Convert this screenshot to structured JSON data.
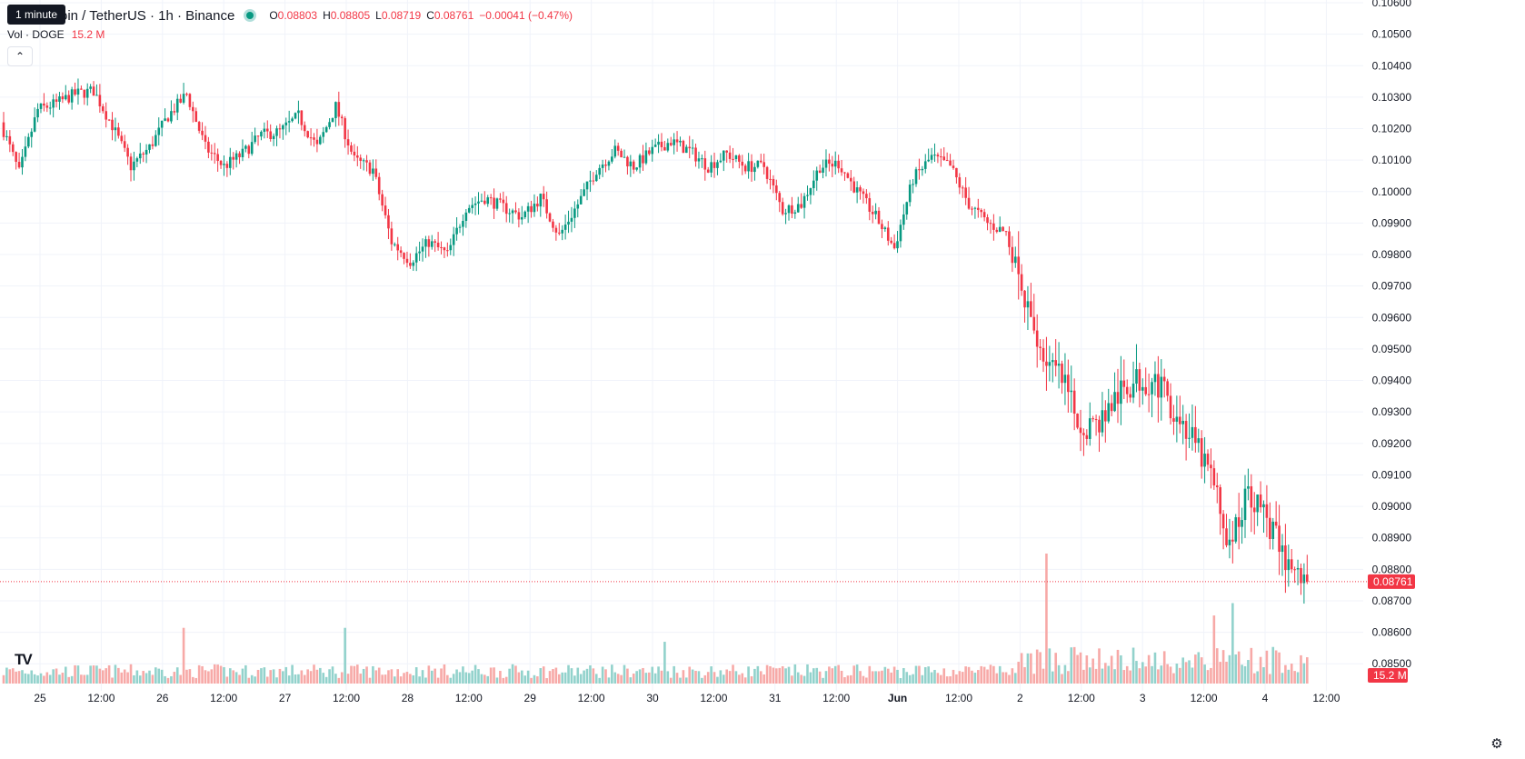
{
  "tooltip": "1 minute",
  "symbol": {
    "title": "oin / TetherUS · 1h · Binance",
    "ohlc": {
      "o_label": "O",
      "o": "0.08803",
      "h_label": "H",
      "h": "0.08805",
      "l_label": "L",
      "l": "0.08719",
      "c_label": "C",
      "c": "0.08761",
      "change": "−0.00041 (−0.47%)"
    }
  },
  "volume_legend": {
    "label": "Vol · DOGE",
    "value": "15.2 M"
  },
  "collapse_icon": "chevron-up-icon",
  "logo_text": "TV",
  "price_badge": "0.08761",
  "volume_badge": "15.2 M",
  "colors": {
    "up": "#089981",
    "down": "#f23645",
    "up_volume": "#92d2cc",
    "down_volume": "#f7a9a7",
    "grid": "#f0f3fa",
    "text": "#131722"
  },
  "chart_data": {
    "type": "candlestick",
    "timeframe": "1h",
    "y_axis": {
      "ticks": [
        "0.10600",
        "0.10500",
        "0.10400",
        "0.10300",
        "0.10200",
        "0.10100",
        "0.10000",
        "0.09900",
        "0.09800",
        "0.09700",
        "0.09600",
        "0.09500",
        "0.09400",
        "0.09300",
        "0.09200",
        "0.09100",
        "0.09000",
        "0.08900",
        "0.08800",
        "0.08700",
        "0.08600",
        "0.08500"
      ],
      "range": [
        0.0844,
        0.106
      ]
    },
    "x_axis": {
      "ticks": [
        {
          "label": "25",
          "bold": false
        },
        {
          "label": "12:00",
          "bold": false
        },
        {
          "label": "26",
          "bold": false
        },
        {
          "label": "12:00",
          "bold": false
        },
        {
          "label": "27",
          "bold": false
        },
        {
          "label": "12:00",
          "bold": false
        },
        {
          "label": "28",
          "bold": false
        },
        {
          "label": "12:00",
          "bold": false
        },
        {
          "label": "29",
          "bold": false
        },
        {
          "label": "12:00",
          "bold": false
        },
        {
          "label": "30",
          "bold": false
        },
        {
          "label": "12:00",
          "bold": false
        },
        {
          "label": "31",
          "bold": false
        },
        {
          "label": "12:00",
          "bold": false
        },
        {
          "label": "Jun",
          "bold": true
        },
        {
          "label": "12:00",
          "bold": false
        },
        {
          "label": "2",
          "bold": false
        },
        {
          "label": "12:00",
          "bold": false
        },
        {
          "label": "3",
          "bold": false
        },
        {
          "label": "12:00",
          "bold": false
        },
        {
          "label": "4",
          "bold": false
        },
        {
          "label": "12:00",
          "bold": false
        }
      ]
    },
    "last_price": 0.08761,
    "close_path": [
      [
        0,
        0.1022
      ],
      [
        6,
        0.1006
      ],
      [
        12,
        0.1026
      ],
      [
        18,
        0.1028
      ],
      [
        24,
        0.1031
      ],
      [
        30,
        0.1032
      ],
      [
        36,
        0.1021
      ],
      [
        42,
        0.1008
      ],
      [
        48,
        0.1014
      ],
      [
        54,
        0.1024
      ],
      [
        60,
        0.1031
      ],
      [
        66,
        0.1014
      ],
      [
        72,
        0.1008
      ],
      [
        78,
        0.1012
      ],
      [
        84,
        0.1018
      ],
      [
        90,
        0.1019
      ],
      [
        96,
        0.1024
      ],
      [
        102,
        0.1014
      ],
      [
        108,
        0.1027
      ],
      [
        114,
        0.101
      ],
      [
        120,
        0.1007
      ],
      [
        126,
        0.0984
      ],
      [
        132,
        0.0978
      ],
      [
        138,
        0.0984
      ],
      [
        144,
        0.098
      ],
      [
        150,
        0.0995
      ],
      [
        156,
        0.0998
      ],
      [
        162,
        0.0995
      ],
      [
        168,
        0.0992
      ],
      [
        174,
        0.0998
      ],
      [
        180,
        0.0986
      ],
      [
        186,
        0.0996
      ],
      [
        192,
        0.1007
      ],
      [
        198,
        0.1013
      ],
      [
        204,
        0.1008
      ],
      [
        210,
        0.1013
      ],
      [
        216,
        0.1016
      ],
      [
        222,
        0.1013
      ],
      [
        228,
        0.1008
      ],
      [
        234,
        0.1012
      ],
      [
        240,
        0.1008
      ],
      [
        246,
        0.1008
      ],
      [
        252,
        0.0994
      ],
      [
        258,
        0.0996
      ],
      [
        264,
        0.1008
      ],
      [
        270,
        0.1009
      ],
      [
        276,
        0.1
      ],
      [
        282,
        0.0992
      ],
      [
        288,
        0.0982
      ],
      [
        294,
        0.1004
      ],
      [
        300,
        0.1011
      ],
      [
        306,
        0.1008
      ],
      [
        312,
        0.0996
      ],
      [
        318,
        0.099
      ],
      [
        324,
        0.0987
      ],
      [
        330,
        0.0964
      ],
      [
        336,
        0.0948
      ],
      [
        342,
        0.094
      ],
      [
        348,
        0.0925
      ],
      [
        354,
        0.0927
      ],
      [
        360,
        0.0935
      ],
      [
        366,
        0.094
      ],
      [
        372,
        0.094
      ],
      [
        378,
        0.0931
      ],
      [
        384,
        0.0921
      ],
      [
        390,
        0.091
      ],
      [
        396,
        0.0887
      ],
      [
        402,
        0.0905
      ],
      [
        408,
        0.0896
      ],
      [
        414,
        0.0883
      ],
      [
        420,
        0.0876
      ]
    ],
    "volume_spikes": [
      {
        "i": 58,
        "v": 3.6,
        "dir": "down"
      },
      {
        "i": 110,
        "v": 3.6,
        "dir": "up"
      },
      {
        "i": 213,
        "v": 2.7,
        "dir": "up"
      },
      {
        "i": 336,
        "v": 8.4,
        "dir": "down"
      },
      {
        "i": 390,
        "v": 4.4,
        "dir": "down"
      },
      {
        "i": 396,
        "v": 5.2,
        "dir": "up"
      },
      {
        "i": 402,
        "v": 2.3,
        "dir": "down"
      }
    ],
    "volume_max": 8.4
  }
}
